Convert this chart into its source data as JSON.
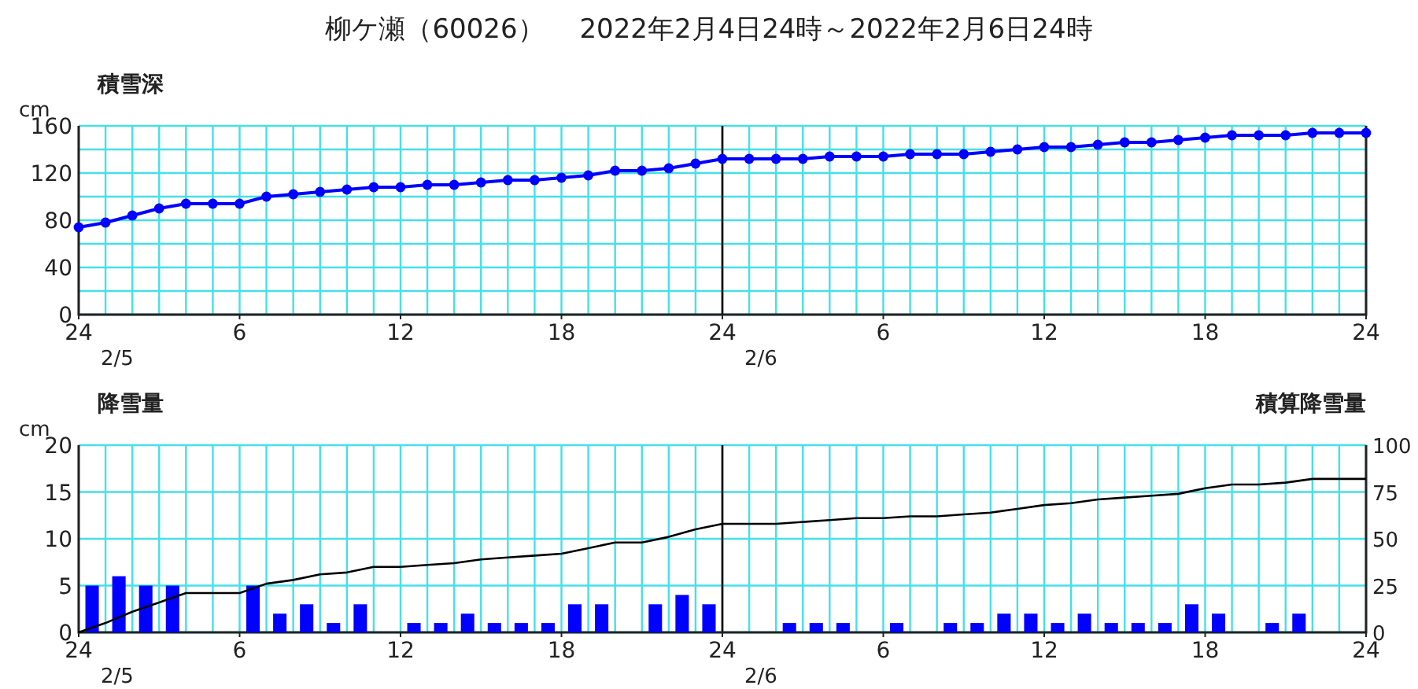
{
  "chart_data": [
    {
      "type": "line",
      "title": "柳ケ瀬（60026）　 2022年2月4日24時～2022年2月6日24時",
      "subtitle": "積雪深",
      "ylabel": "cm",
      "x": [
        "2022-02-05T00:00",
        "2022-02-05T01:00",
        "2022-02-05T02:00",
        "2022-02-05T03:00",
        "2022-02-05T04:00",
        "2022-02-05T05:00",
        "2022-02-05T06:00",
        "2022-02-05T07:00",
        "2022-02-05T08:00",
        "2022-02-05T09:00",
        "2022-02-05T10:00",
        "2022-02-05T11:00",
        "2022-02-05T12:00",
        "2022-02-05T13:00",
        "2022-02-05T14:00",
        "2022-02-05T15:00",
        "2022-02-05T16:00",
        "2022-02-05T17:00",
        "2022-02-05T18:00",
        "2022-02-05T19:00",
        "2022-02-05T20:00",
        "2022-02-05T21:00",
        "2022-02-05T22:00",
        "2022-02-05T23:00",
        "2022-02-06T00:00",
        "2022-02-06T01:00",
        "2022-02-06T02:00",
        "2022-02-06T03:00",
        "2022-02-06T04:00",
        "2022-02-06T05:00",
        "2022-02-06T06:00",
        "2022-02-06T07:00",
        "2022-02-06T08:00",
        "2022-02-06T09:00",
        "2022-02-06T10:00",
        "2022-02-06T11:00",
        "2022-02-06T12:00",
        "2022-02-06T13:00",
        "2022-02-06T14:00",
        "2022-02-06T15:00",
        "2022-02-06T16:00",
        "2022-02-06T17:00",
        "2022-02-06T18:00",
        "2022-02-06T19:00",
        "2022-02-06T20:00",
        "2022-02-06T21:00",
        "2022-02-06T22:00",
        "2022-02-06T23:00",
        "2022-02-07T00:00"
      ],
      "series": [
        {
          "color": "#0000ff",
          "values": [
            74,
            78,
            84,
            90,
            94,
            94,
            94,
            100,
            102,
            104,
            106,
            108,
            108,
            110,
            110,
            112,
            114,
            114,
            116,
            118,
            122,
            122,
            124,
            128,
            132,
            132,
            132,
            132,
            134,
            134,
            134,
            136,
            136,
            136,
            138,
            140,
            142,
            142,
            144,
            146,
            146,
            148,
            150,
            152,
            152,
            152,
            154,
            154,
            154
          ]
        }
      ],
      "marker": "circle",
      "grid": true,
      "xlim": [
        "2022-02-05T00:00",
        "2022-02-07T00:00"
      ],
      "xticks": [
        {
          "value": "2022-02-05T00:00",
          "label": "24"
        },
        {
          "value": "2022-02-05T06:00",
          "label": "6"
        },
        {
          "value": "2022-02-05T12:00",
          "label": "12"
        },
        {
          "value": "2022-02-05T18:00",
          "label": "18"
        },
        {
          "value": "2022-02-06T00:00",
          "label": "24"
        },
        {
          "value": "2022-02-06T06:00",
          "label": "6"
        },
        {
          "value": "2022-02-06T12:00",
          "label": "12"
        },
        {
          "value": "2022-02-06T18:00",
          "label": "18"
        },
        {
          "value": "2022-02-07T00:00",
          "label": "24"
        }
      ],
      "ylim": [
        0,
        160
      ],
      "yticks": [
        0,
        {
          "value": 20,
          "label": null
        },
        40,
        {
          "value": 60,
          "label": null
        },
        80,
        {
          "value": 100,
          "label": null
        },
        120,
        {
          "value": 140,
          "label": null
        },
        160
      ],
      "ref_lines": [
        {
          "axis": "x",
          "value": "2022-02-06T00:00",
          "color": "#000000"
        }
      ],
      "annotations": [
        "2/5",
        "2/6"
      ]
    },
    {
      "type": "bar",
      "subtitle": "降雪量",
      "ylabel": "cm",
      "y2label": "積算降雪量",
      "series": [
        {
          "color": "#0000ff",
          "x": [
            "2022-02-05T00:30",
            "2022-02-05T01:30",
            "2022-02-05T02:30",
            "2022-02-05T03:30",
            "2022-02-05T04:30",
            "2022-02-05T05:30",
            "2022-02-05T06:30",
            "2022-02-05T07:30",
            "2022-02-05T08:30",
            "2022-02-05T09:30",
            "2022-02-05T10:30",
            "2022-02-05T11:30",
            "2022-02-05T12:30",
            "2022-02-05T13:30",
            "2022-02-05T14:30",
            "2022-02-05T15:30",
            "2022-02-05T16:30",
            "2022-02-05T17:30",
            "2022-02-05T18:30",
            "2022-02-05T19:30",
            "2022-02-05T20:30",
            "2022-02-05T21:30",
            "2022-02-05T22:30",
            "2022-02-05T23:30",
            "2022-02-06T00:30",
            "2022-02-06T01:30",
            "2022-02-06T02:30",
            "2022-02-06T03:30",
            "2022-02-06T04:30",
            "2022-02-06T05:30",
            "2022-02-06T06:30",
            "2022-02-06T07:30",
            "2022-02-06T08:30",
            "2022-02-06T09:30",
            "2022-02-06T10:30",
            "2022-02-06T11:30",
            "2022-02-06T12:30",
            "2022-02-06T13:30",
            "2022-02-06T14:30",
            "2022-02-06T15:30",
            "2022-02-06T16:30",
            "2022-02-06T17:30",
            "2022-02-06T18:30",
            "2022-02-06T19:30",
            "2022-02-06T20:30",
            "2022-02-06T21:30",
            "2022-02-06T22:30",
            "2022-02-06T23:30"
          ],
          "values": [
            5,
            6,
            5,
            5,
            0,
            0,
            5,
            2,
            3,
            1,
            3,
            0,
            1,
            1,
            2,
            1,
            1,
            1,
            3,
            3,
            0,
            3,
            4,
            3,
            0,
            0,
            1,
            1,
            1,
            0,
            1,
            0,
            1,
            1,
            2,
            2,
            1,
            2,
            1,
            1,
            1,
            3,
            2,
            0,
            1,
            2,
            0,
            0
          ]
        },
        {
          "type": "line",
          "axis": "y2",
          "color": "#000000",
          "x": [
            "2022-02-05T00:00",
            "2022-02-05T01:00",
            "2022-02-05T02:00",
            "2022-02-05T03:00",
            "2022-02-05T04:00",
            "2022-02-05T05:00",
            "2022-02-05T06:00",
            "2022-02-05T07:00",
            "2022-02-05T08:00",
            "2022-02-05T09:00",
            "2022-02-05T10:00",
            "2022-02-05T11:00",
            "2022-02-05T12:00",
            "2022-02-05T13:00",
            "2022-02-05T14:00",
            "2022-02-05T15:00",
            "2022-02-05T16:00",
            "2022-02-05T17:00",
            "2022-02-05T18:00",
            "2022-02-05T19:00",
            "2022-02-05T20:00",
            "2022-02-05T21:00",
            "2022-02-05T22:00",
            "2022-02-05T23:00",
            "2022-02-06T00:00",
            "2022-02-06T01:00",
            "2022-02-06T02:00",
            "2022-02-06T03:00",
            "2022-02-06T04:00",
            "2022-02-06T05:00",
            "2022-02-06T06:00",
            "2022-02-06T07:00",
            "2022-02-06T08:00",
            "2022-02-06T09:00",
            "2022-02-06T10:00",
            "2022-02-06T11:00",
            "2022-02-06T12:00",
            "2022-02-06T13:00",
            "2022-02-06T14:00",
            "2022-02-06T15:00",
            "2022-02-06T16:00",
            "2022-02-06T17:00",
            "2022-02-06T18:00",
            "2022-02-06T19:00",
            "2022-02-06T20:00",
            "2022-02-06T21:00",
            "2022-02-06T22:00",
            "2022-02-06T23:00",
            "2022-02-07T00:00"
          ],
          "values": [
            0,
            5,
            11,
            16,
            21,
            21,
            21,
            26,
            28,
            31,
            32,
            35,
            35,
            36,
            37,
            39,
            40,
            41,
            42,
            45,
            48,
            48,
            51,
            55,
            58,
            58,
            58,
            59,
            60,
            61,
            61,
            62,
            62,
            63,
            64,
            66,
            68,
            69,
            71,
            72,
            73,
            74,
            77,
            79,
            79,
            80,
            82,
            82,
            82
          ]
        }
      ],
      "grid": true,
      "xlim": [
        "2022-02-05T00:00",
        "2022-02-07T00:00"
      ],
      "xticks": [
        {
          "value": "2022-02-05T00:00",
          "label": "24"
        },
        {
          "value": "2022-02-05T06:00",
          "label": "6"
        },
        {
          "value": "2022-02-05T12:00",
          "label": "12"
        },
        {
          "value": "2022-02-05T18:00",
          "label": "18"
        },
        {
          "value": "2022-02-06T00:00",
          "label": "24"
        },
        {
          "value": "2022-02-06T06:00",
          "label": "6"
        },
        {
          "value": "2022-02-06T12:00",
          "label": "12"
        },
        {
          "value": "2022-02-06T18:00",
          "label": "18"
        },
        {
          "value": "2022-02-07T00:00",
          "label": "24"
        }
      ],
      "ylim": [
        0,
        20
      ],
      "yticks": [
        0,
        5,
        10,
        15,
        20
      ],
      "y2lim": [
        0,
        100
      ],
      "y2ticks": [
        0,
        25,
        50,
        75,
        100
      ],
      "ref_lines": [
        {
          "axis": "x",
          "value": "2022-02-06T00:00",
          "color": "#000000"
        }
      ],
      "annotations": [
        "2/5",
        "2/6"
      ]
    }
  ]
}
